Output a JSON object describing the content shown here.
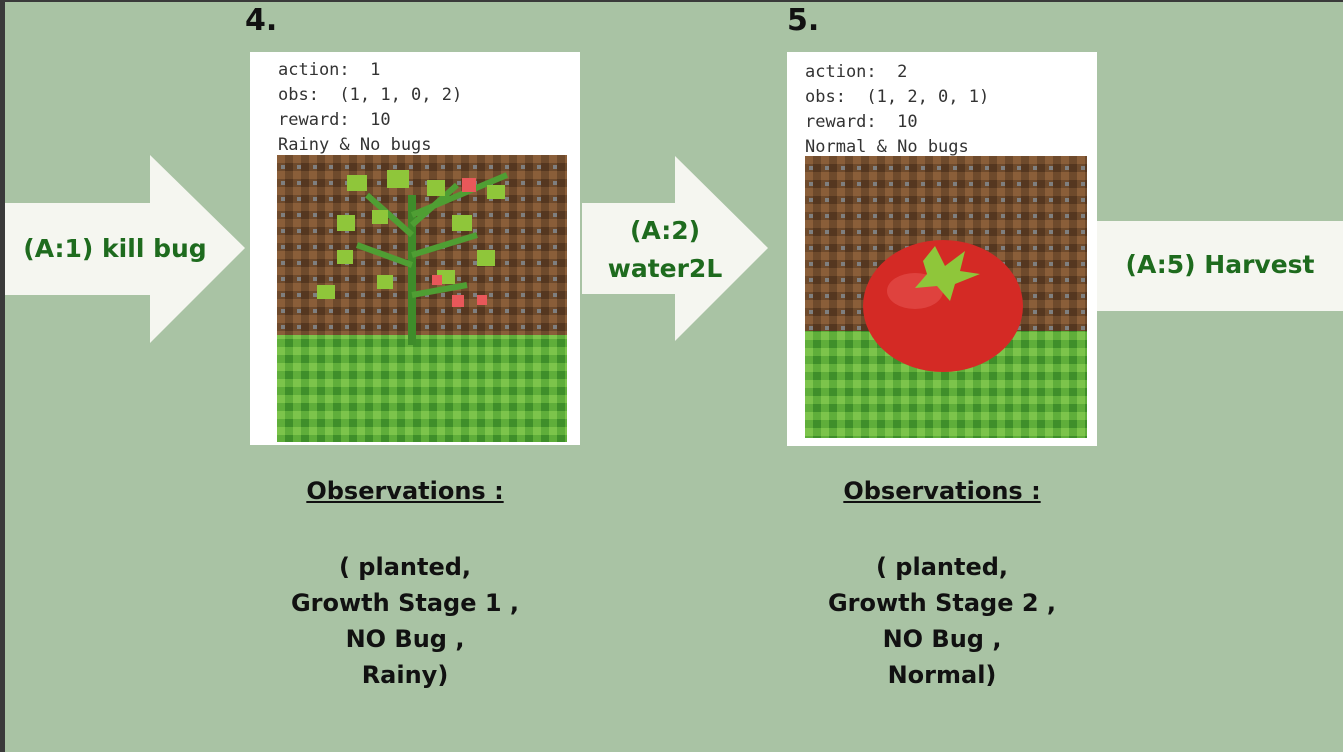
{
  "steps": [
    {
      "number": "4.",
      "info": [
        "action:  1",
        "obs:  (1, 1, 0, 2)",
        "reward:  10",
        "Rainy & No bugs"
      ],
      "obs_title": "Observations :",
      "obs_lines": [
        "( planted,",
        "Growth Stage 1  ,",
        "NO Bug ,",
        "Rainy)"
      ]
    },
    {
      "number": "5.",
      "info": [
        "action:  2",
        "obs:  (1, 2, 0, 1)",
        "reward:  10",
        "Normal & No bugs"
      ],
      "obs_title": "Observations :",
      "obs_lines": [
        "( planted,",
        "Growth Stage 2  ,",
        "NO Bug ,",
        "Normal)"
      ]
    }
  ],
  "arrows": {
    "a1": "(A:1) kill bug",
    "a2_line1": "(A:2)",
    "a2_line2": "water2L",
    "a5": "(A:5) Harvest"
  },
  "colors": {
    "background": "#a9c3a4",
    "arrow_fill": "#f5f6f0",
    "label_green": "#1e6b1e"
  }
}
